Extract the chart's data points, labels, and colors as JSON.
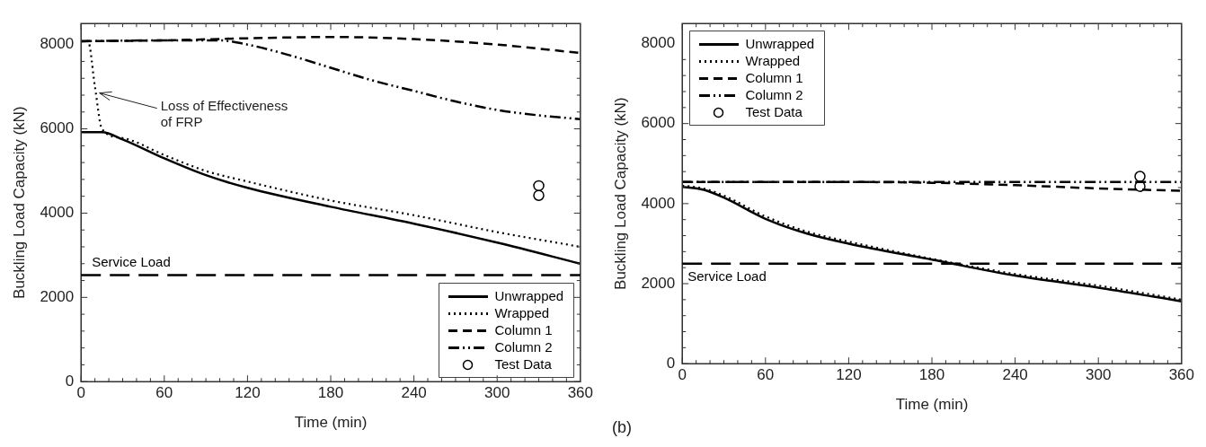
{
  "chart_data": [
    {
      "type": "line",
      "xlabel": "Time (min)",
      "ylabel": "Buckling Load Capacity (kN)",
      "xlim": [
        0,
        360
      ],
      "xticks": [
        0,
        60,
        120,
        180,
        240,
        300,
        360
      ],
      "ylim": [
        0,
        8500
      ],
      "yticks": [
        0,
        2000,
        4000,
        6000,
        8000
      ],
      "grid": false,
      "legend": "bottom right",
      "annotations": [
        {
          "text": "Loss of Effectiveness of FRP",
          "x": 12,
          "y": 6850
        }
      ],
      "ref_lines": [
        {
          "axis": "y",
          "value": 2530,
          "label": "Service Load",
          "color": "#000000",
          "line_style": "dashed"
        }
      ],
      "series": [
        {
          "name": "Unwrapped",
          "color": "#000000",
          "line_style": "solid",
          "marker": "none",
          "x": [
            0,
            15,
            30,
            60,
            90,
            120,
            180,
            240,
            300,
            360
          ],
          "values": [
            5920,
            5920,
            5750,
            5300,
            4900,
            4600,
            4150,
            3750,
            3300,
            2800
          ]
        },
        {
          "name": "Wrapped",
          "color": "#000000",
          "line_style": "dotted",
          "marker": "none",
          "x": [
            0,
            5,
            10,
            15,
            30,
            60,
            90,
            120,
            180,
            240,
            300,
            360
          ],
          "values": [
            8080,
            8080,
            7000,
            6000,
            5780,
            5380,
            5000,
            4750,
            4300,
            3950,
            3550,
            3200
          ]
        },
        {
          "name": "Column 1",
          "color": "#000000",
          "line_style": "dashed",
          "marker": "none",
          "x": [
            0,
            60,
            120,
            180,
            240,
            300,
            360
          ],
          "values": [
            8080,
            8100,
            8150,
            8180,
            8130,
            8000,
            7800
          ]
        },
        {
          "name": "Column 2",
          "color": "#000000",
          "line_style": "dashdot",
          "marker": "none",
          "x": [
            0,
            60,
            100,
            120,
            150,
            180,
            210,
            240,
            270,
            300,
            330,
            360
          ],
          "values": [
            8080,
            8100,
            8100,
            8000,
            7750,
            7450,
            7150,
            6900,
            6650,
            6450,
            6320,
            6230
          ]
        },
        {
          "name": "Test Data",
          "type": "scatter",
          "color": "#000000",
          "marker": "circle",
          "x": [
            330,
            330
          ],
          "values": [
            4650,
            4420
          ]
        }
      ]
    },
    {
      "type": "line",
      "xlabel": "Time (min)",
      "ylabel": "Buckling Load Capacity (kN)",
      "xlim": [
        0,
        360
      ],
      "xticks": [
        0,
        60,
        120,
        180,
        240,
        300,
        360
      ],
      "ylim": [
        0,
        8500
      ],
      "yticks": [
        0,
        2000,
        4000,
        6000,
        8000
      ],
      "grid": false,
      "legend": "top left",
      "annotations": [
        "(b)"
      ],
      "ref_lines": [
        {
          "axis": "y",
          "value": 2500,
          "label": "Service Load",
          "color": "#000000",
          "line_style": "dashed"
        }
      ],
      "series": [
        {
          "name": "Unwrapped",
          "color": "#000000",
          "line_style": "solid",
          "marker": "none",
          "x": [
            0,
            15,
            30,
            60,
            90,
            120,
            180,
            240,
            300,
            360
          ],
          "values": [
            4420,
            4350,
            4150,
            3620,
            3250,
            3000,
            2600,
            2200,
            1900,
            1560
          ]
        },
        {
          "name": "Wrapped",
          "color": "#000000",
          "line_style": "dotted",
          "marker": "none",
          "x": [
            0,
            15,
            30,
            60,
            90,
            120,
            180,
            240,
            300,
            360
          ],
          "values": [
            4450,
            4380,
            4200,
            3680,
            3300,
            3050,
            2620,
            2240,
            1950,
            1600
          ]
        },
        {
          "name": "Column 1",
          "color": "#000000",
          "line_style": "dashed",
          "marker": "none",
          "x": [
            0,
            120,
            180,
            240,
            300,
            360
          ],
          "values": [
            4540,
            4540,
            4520,
            4460,
            4380,
            4320
          ]
        },
        {
          "name": "Column 2",
          "color": "#000000",
          "line_style": "dashdot",
          "marker": "none",
          "x": [
            0,
            120,
            240,
            360
          ],
          "values": [
            4540,
            4540,
            4540,
            4540
          ]
        },
        {
          "name": "Test Data",
          "type": "scatter",
          "color": "#000000",
          "marker": "circle",
          "x": [
            330,
            330
          ],
          "values": [
            4680,
            4430
          ]
        }
      ]
    }
  ]
}
